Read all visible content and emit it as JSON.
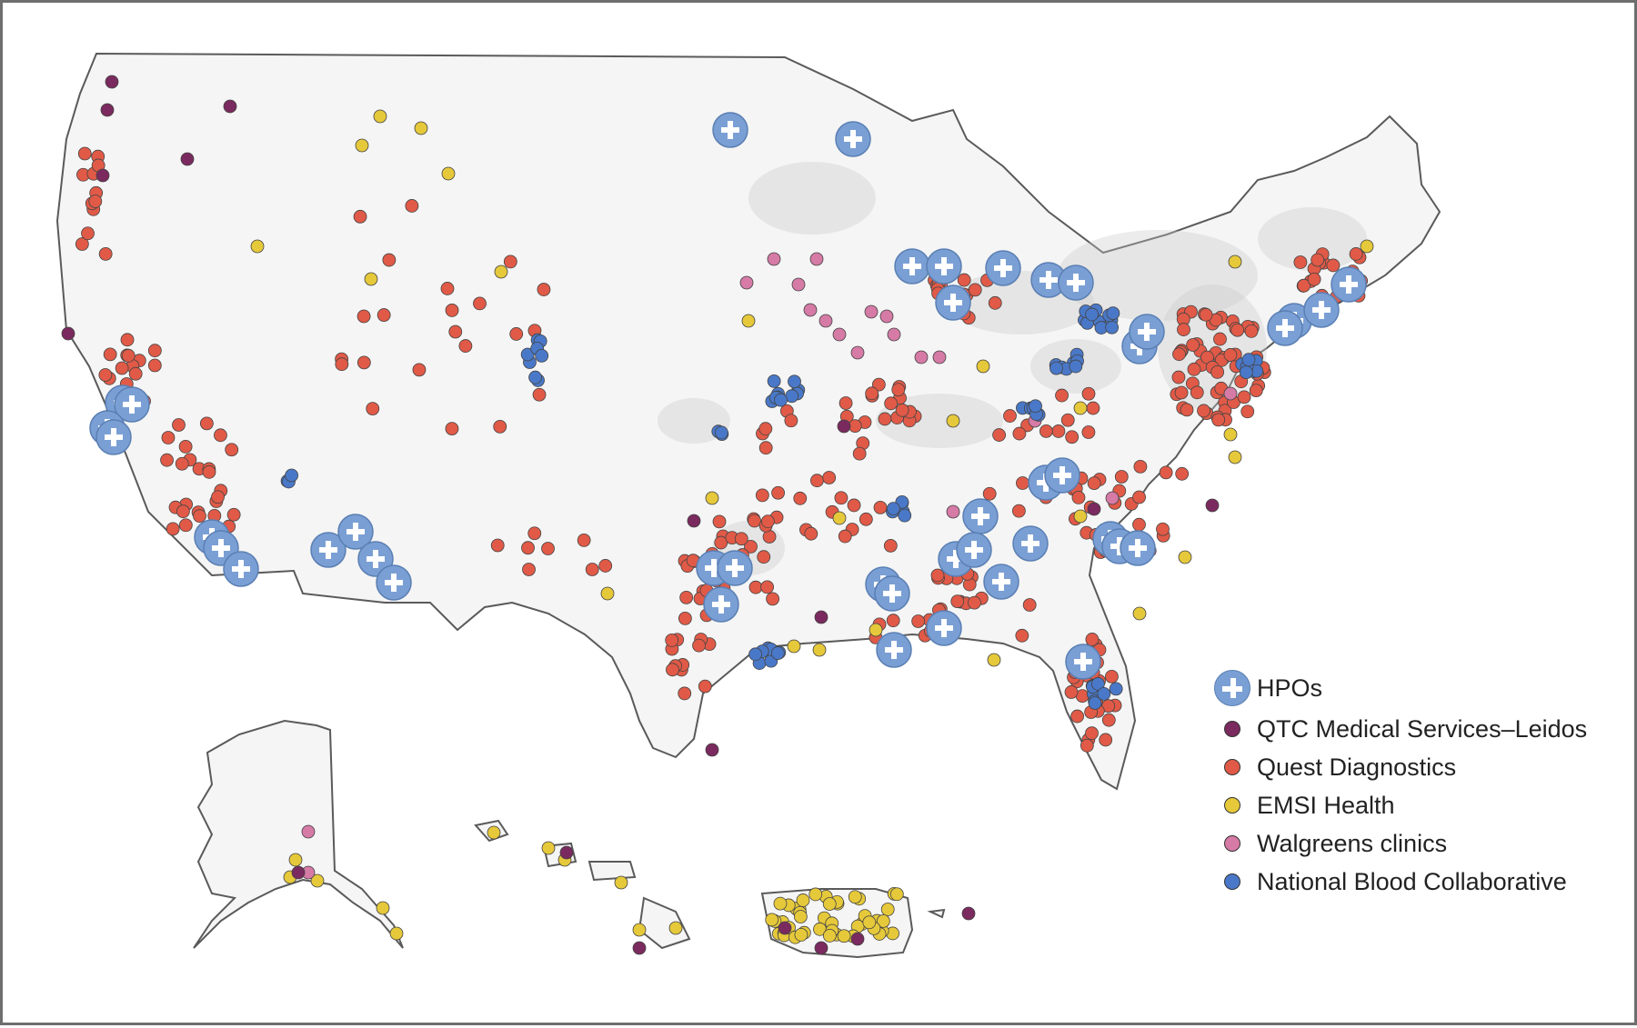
{
  "colors": {
    "hpo": "#7a9fd4",
    "hpo_stroke": "#5a7fb3",
    "qtc": "#7a2a5e",
    "quest": "#e05a47",
    "emsi": "#e6c93a",
    "walgreens": "#d67aa6",
    "nbc": "#4a78c8",
    "land": "#f5f5f5",
    "outline": "#5a5a5a",
    "urban": "#c9c9c9"
  },
  "legend": {
    "hpos": "HPOs",
    "qtc": "QTC Medical Services–Leidos",
    "quest": "Quest Diagnostics",
    "emsi": "EMSI Health",
    "walgreens": "Walgreens clinics",
    "nbc": "National Blood Collaborative"
  }
}
